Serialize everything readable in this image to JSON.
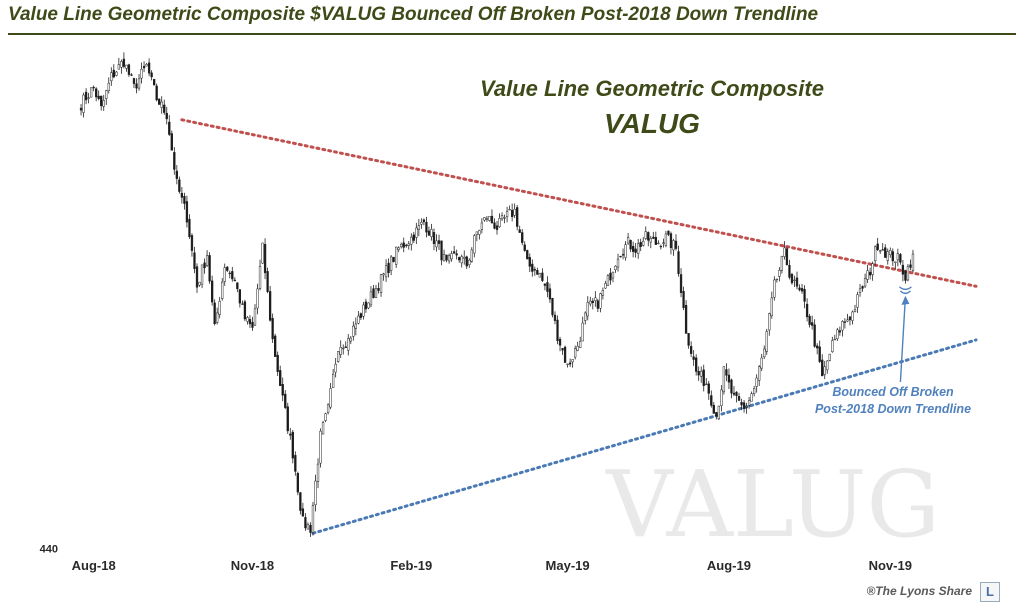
{
  "header": {
    "title": "Value Line Geometric Composite $VALUG Bounced Off Broken Post-2018 Down Trendline"
  },
  "footer": {
    "copyright": "®The Lyons Share",
    "logo_letter": "L"
  },
  "colors": {
    "title": "#3e4a18",
    "candle_up": "#ffffff",
    "candle_down": "#1a1a1a",
    "candle_outline": "#222222",
    "downtrend_line": "#c0504d",
    "uptrend_line": "#4a7ab5",
    "annotation": "#4f81bd",
    "watermark": "#e8e8e8"
  },
  "chart_data": {
    "type": "candlestick",
    "title": "Value Line Geometric Composite",
    "subtitle": "VALUG",
    "watermark": "VALUG",
    "xlabel": "",
    "ylabel": "",
    "y_tick_labels": [
      {
        "label": "440",
        "value": 440
      }
    ],
    "x_tick_labels": [
      {
        "label": "Aug-18",
        "index": 5
      },
      {
        "label": "Nov-18",
        "index": 68
      },
      {
        "label": "Feb-19",
        "index": 131
      },
      {
        "label": "May-19",
        "index": 193
      },
      {
        "label": "Aug-19",
        "index": 257
      },
      {
        "label": "Nov-19",
        "index": 321
      }
    ],
    "ylim": [
      438,
      530
    ],
    "xlim": [
      -2,
      355
    ],
    "grid": false,
    "legend": "none",
    "anchors": [
      [
        0,
        520
      ],
      [
        5,
        523
      ],
      [
        8,
        519
      ],
      [
        12,
        525
      ],
      [
        17,
        528
      ],
      [
        21,
        523
      ],
      [
        26,
        527
      ],
      [
        30,
        521
      ],
      [
        34,
        518
      ],
      [
        38,
        505
      ],
      [
        42,
        499
      ],
      [
        46,
        486
      ],
      [
        50,
        492
      ],
      [
        53,
        478
      ],
      [
        57,
        490
      ],
      [
        61,
        487
      ],
      [
        65,
        480
      ],
      [
        68,
        478
      ],
      [
        72,
        493
      ],
      [
        76,
        476
      ],
      [
        80,
        465
      ],
      [
        84,
        455
      ],
      [
        88,
        442
      ],
      [
        91,
        441
      ],
      [
        95,
        458
      ],
      [
        98,
        463
      ],
      [
        102,
        475
      ],
      [
        106,
        476
      ],
      [
        110,
        480
      ],
      [
        115,
        484
      ],
      [
        120,
        488
      ],
      [
        126,
        493
      ],
      [
        131,
        495
      ],
      [
        136,
        498
      ],
      [
        141,
        494
      ],
      [
        145,
        490
      ],
      [
        149,
        492
      ],
      [
        153,
        490
      ],
      [
        157,
        496
      ],
      [
        161,
        499
      ],
      [
        165,
        497
      ],
      [
        169,
        499
      ],
      [
        172,
        500
      ],
      [
        177,
        490
      ],
      [
        181,
        489
      ],
      [
        185,
        485
      ],
      [
        189,
        477
      ],
      [
        193,
        471
      ],
      [
        197,
        475
      ],
      [
        201,
        482
      ],
      [
        205,
        483
      ],
      [
        209,
        487
      ],
      [
        213,
        492
      ],
      [
        217,
        494
      ],
      [
        220,
        493
      ],
      [
        224,
        495
      ],
      [
        228,
        494
      ],
      [
        232,
        495
      ],
      [
        236,
        493
      ],
      [
        240,
        478
      ],
      [
        244,
        470
      ],
      [
        248,
        468
      ],
      [
        252,
        462
      ],
      [
        255,
        470
      ],
      [
        259,
        465
      ],
      [
        263,
        463
      ],
      [
        267,
        467
      ],
      [
        271,
        474
      ],
      [
        275,
        486
      ],
      [
        279,
        492
      ],
      [
        282,
        487
      ],
      [
        286,
        484
      ],
      [
        290,
        478
      ],
      [
        294,
        469
      ],
      [
        298,
        475
      ],
      [
        302,
        479
      ],
      [
        306,
        481
      ],
      [
        310,
        486
      ],
      [
        313,
        489
      ],
      [
        316,
        494
      ],
      [
        320,
        492
      ],
      [
        324,
        491
      ],
      [
        327,
        488
      ],
      [
        330,
        492
      ]
    ],
    "trendlines": [
      {
        "kind": "down",
        "points": [
          [
            40,
            517
          ],
          [
            355,
            486
          ]
        ],
        "color": "#c0504d",
        "style": "dotted"
      },
      {
        "kind": "up",
        "points": [
          [
            92,
            440
          ],
          [
            355,
            476
          ]
        ],
        "color": "#4a7ab5",
        "style": "dotted"
      }
    ],
    "annotation": {
      "text_lines": [
        "Bounced Off Broken",
        "Post-2018 Down Trendline"
      ],
      "target_index": 327,
      "target_value": 487
    }
  }
}
